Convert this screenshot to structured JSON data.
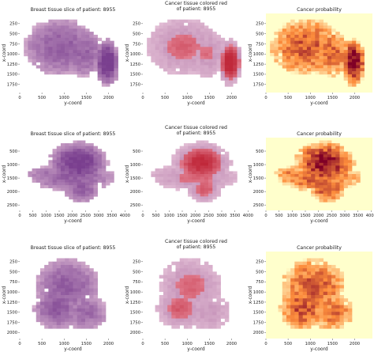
{
  "chart_data": [
    {
      "type": "heatmap",
      "title": "Breast tissue slice of patient: 8955",
      "xlabel": "y-coord",
      "ylabel": "x-coord",
      "xticks": [
        "0",
        "500",
        "1000",
        "1500",
        "2000"
      ],
      "yticks": [
        "250",
        "500",
        "750",
        "1000",
        "1250",
        "1500",
        "1750"
      ],
      "xlim": [
        0,
        2400
      ],
      "ylim": [
        0,
        1950
      ],
      "blobs": [
        {
          "cx": 0.38,
          "cy": 0.42,
          "rx": 0.34,
          "ry": 0.36,
          "intensity": 0.55
        },
        {
          "cx": 0.6,
          "cy": 0.5,
          "rx": 0.2,
          "ry": 0.3,
          "intensity": 0.5
        },
        {
          "cx": 0.82,
          "cy": 0.62,
          "rx": 0.12,
          "ry": 0.3,
          "intensity": 0.95
        }
      ]
    },
    {
      "type": "heatmap",
      "title": "Cancer tissue colored red",
      "subtitle": "of patient: 8955",
      "xlabel": "y-coord",
      "ylabel": "x-coord",
      "xticks": [
        "0",
        "500",
        "1000",
        "1500",
        "2000"
      ],
      "yticks": [
        "250",
        "500",
        "750",
        "1000",
        "1250",
        "1500",
        "1750"
      ],
      "xlim": [
        0,
        2400
      ],
      "ylim": [
        0,
        1950
      ]
    },
    {
      "type": "heatmap",
      "title": "Cancer probability",
      "xlabel": "y-coord",
      "ylabel": "x-coord",
      "xticks": [
        "0",
        "500",
        "1000",
        "1500",
        "2000"
      ],
      "yticks": [
        "250",
        "500",
        "750",
        "1000",
        "1250",
        "1500",
        "1750"
      ],
      "xlim": [
        0,
        2400
      ],
      "ylim": [
        0,
        1950
      ]
    },
    {
      "type": "heatmap",
      "title": "Breast tissue slice of patient: 8955",
      "xlabel": "y-coord",
      "ylabel": "x-coord",
      "xticks": [
        "0",
        "500",
        "1000",
        "1500",
        "2000",
        "2500",
        "3000",
        "3500",
        "4000"
      ],
      "yticks": [
        "500",
        "1000",
        "1500",
        "2000",
        "2500"
      ],
      "xlim": [
        0,
        4050
      ],
      "ylim": [
        0,
        2700
      ],
      "blobs": [
        {
          "cx": 0.55,
          "cy": 0.35,
          "rx": 0.28,
          "ry": 0.3,
          "intensity": 0.85
        },
        {
          "cx": 0.5,
          "cy": 0.55,
          "rx": 0.4,
          "ry": 0.18,
          "intensity": 0.55
        },
        {
          "cx": 0.58,
          "cy": 0.7,
          "rx": 0.16,
          "ry": 0.2,
          "intensity": 0.6
        },
        {
          "cx": 0.25,
          "cy": 0.5,
          "rx": 0.18,
          "ry": 0.1,
          "intensity": 0.35
        }
      ]
    },
    {
      "type": "heatmap",
      "title": "Cancer tissue colored red",
      "subtitle": "of patient: 8955",
      "xlabel": "y-coord",
      "ylabel": "x-coord",
      "xticks": [
        "0",
        "500",
        "1000",
        "1500",
        "2000",
        "2500",
        "3000",
        "3500",
        "4000"
      ],
      "yticks": [
        "500",
        "1000",
        "1500",
        "2000",
        "2500"
      ],
      "xlim": [
        0,
        4050
      ],
      "ylim": [
        0,
        2700
      ]
    },
    {
      "type": "heatmap",
      "title": "Cancer probability",
      "xlabel": "y-coord",
      "ylabel": "x-coord",
      "xticks": [
        "0",
        "500",
        "1000",
        "1500",
        "2000",
        "2500",
        "3000",
        "3500",
        "4000"
      ],
      "yticks": [
        "500",
        "1000",
        "1500",
        "2000",
        "2500"
      ],
      "xlim": [
        0,
        4050
      ],
      "ylim": [
        0,
        2700
      ]
    },
    {
      "type": "heatmap",
      "title": "Breast tissue slice of patient: 8955",
      "xlabel": "y-coord",
      "ylabel": "x-coord",
      "xticks": [
        "0",
        "500",
        "1000",
        "1500",
        "2000"
      ],
      "yticks": [
        "250",
        "500",
        "750",
        "1000",
        "1250",
        "1500",
        "1750",
        "2000"
      ],
      "xlim": [
        0,
        2400
      ],
      "ylim": [
        0,
        2150
      ],
      "blobs": [
        {
          "cx": 0.45,
          "cy": 0.4,
          "rx": 0.3,
          "ry": 0.32,
          "intensity": 0.55
        },
        {
          "cx": 0.35,
          "cy": 0.65,
          "rx": 0.22,
          "ry": 0.25,
          "intensity": 0.6
        },
        {
          "cx": 0.62,
          "cy": 0.7,
          "rx": 0.2,
          "ry": 0.2,
          "intensity": 0.45
        }
      ]
    },
    {
      "type": "heatmap",
      "title": "Cancer tissue colored red",
      "subtitle": "of patient: 8955",
      "xlabel": "y-coord",
      "ylabel": "x-coord",
      "xticks": [
        "0",
        "500",
        "1000",
        "1500",
        "2000"
      ],
      "yticks": [
        "250",
        "500",
        "750",
        "1000",
        "1250",
        "1500",
        "1750",
        "2000"
      ],
      "xlim": [
        0,
        2400
      ],
      "ylim": [
        0,
        2150
      ]
    },
    {
      "type": "heatmap",
      "title": "Cancer probability",
      "xlabel": "y-coord",
      "ylabel": "x-coord",
      "xticks": [
        "0",
        "500",
        "1000",
        "1500",
        "2000"
      ],
      "yticks": [
        "250",
        "500",
        "750",
        "1000",
        "1250",
        "1500",
        "1750",
        "2000"
      ],
      "xlim": [
        0,
        2400
      ],
      "ylim": [
        0,
        2150
      ]
    }
  ],
  "colors": {
    "tissue_light": "#e9c8dc",
    "tissue_dark": "#7a3f8f",
    "cancer_red": "#c0283a",
    "prob_low": "#ffffcc",
    "prob_mid": "#fd8d3c",
    "prob_high": "#800026"
  }
}
